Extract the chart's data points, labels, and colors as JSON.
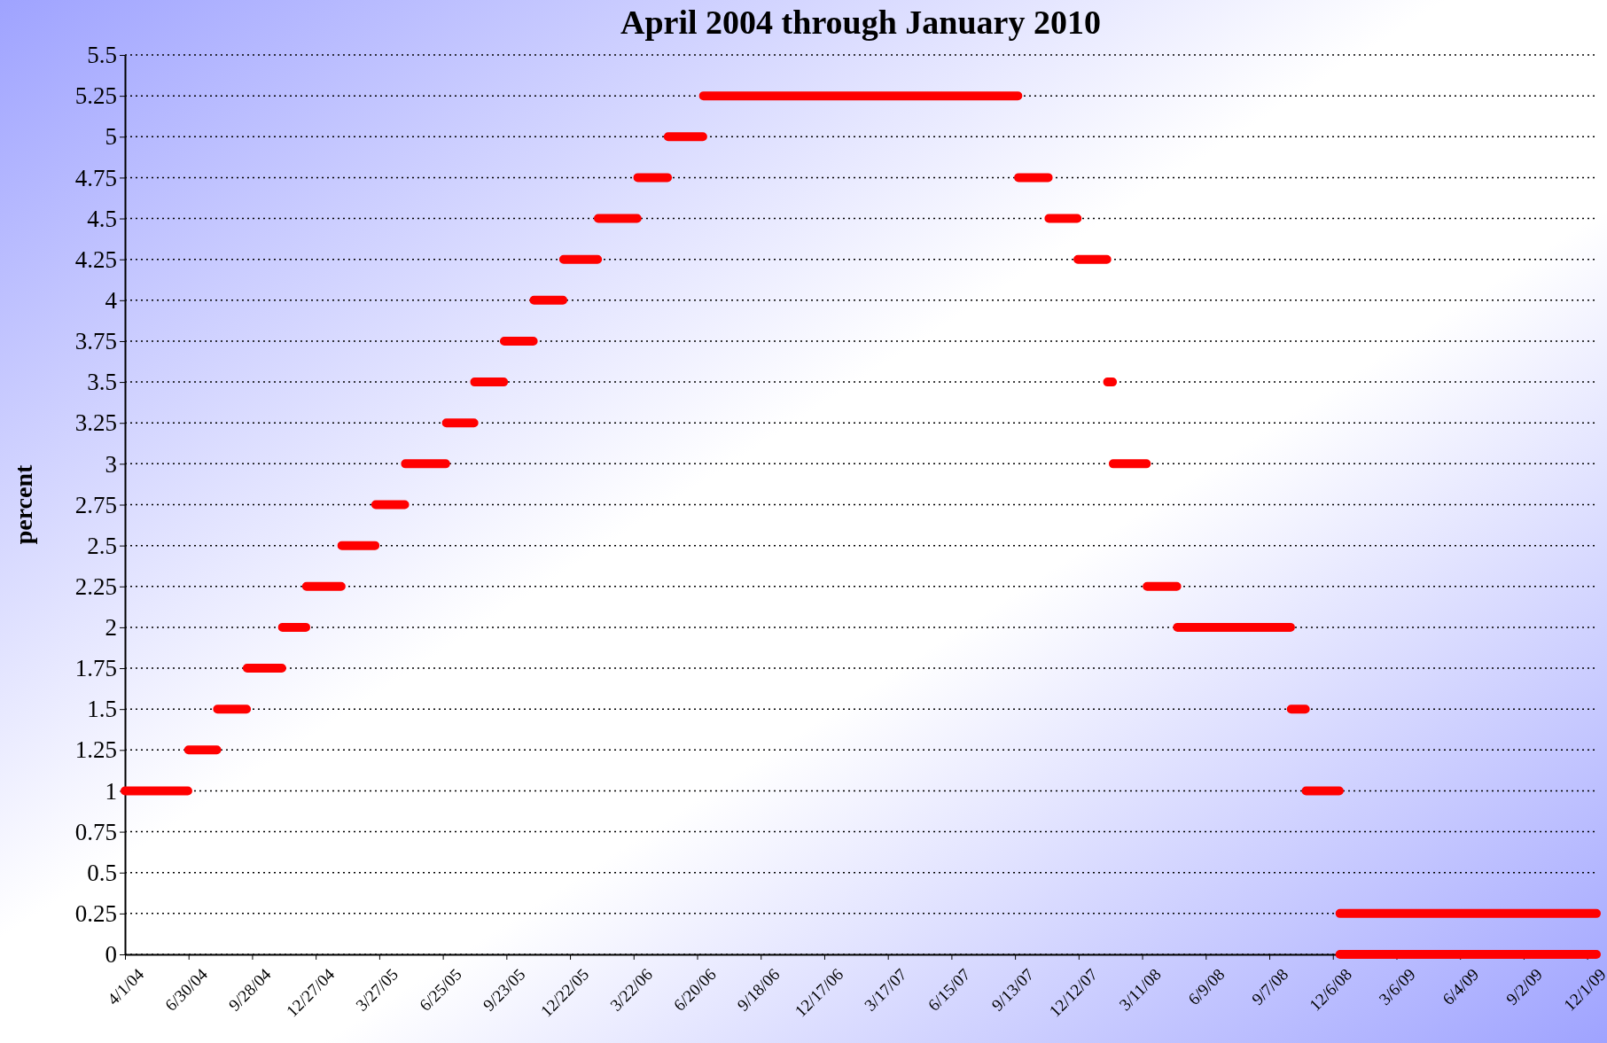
{
  "chart_data": {
    "type": "line",
    "title": "April 2004 through January 2010",
    "ylabel": "percent",
    "x": [
      "2004-04-01",
      "2004-06-29",
      null,
      "2004-06-30",
      "2004-08-09",
      null,
      "2004-08-10",
      "2004-09-20",
      null,
      "2004-09-21",
      "2004-11-09",
      null,
      "2004-11-10",
      "2004-12-13",
      null,
      "2004-12-14",
      "2005-02-01",
      null,
      "2005-02-02",
      "2005-03-21",
      null,
      "2005-03-22",
      "2005-05-02",
      null,
      "2005-05-03",
      "2005-06-29",
      null,
      "2005-06-30",
      "2005-08-08",
      null,
      "2005-08-09",
      "2005-09-19",
      null,
      "2005-09-20",
      "2005-10-31",
      null,
      "2005-11-01",
      "2005-12-12",
      null,
      "2005-12-13",
      "2006-01-30",
      null,
      "2006-01-31",
      "2006-03-27",
      null,
      "2006-03-28",
      "2006-05-09",
      null,
      "2006-05-10",
      "2006-06-28",
      null,
      "2006-06-29",
      "2007-09-17",
      null,
      "2007-09-18",
      "2007-10-30",
      null,
      "2007-10-31",
      "2007-12-10",
      null,
      "2007-12-11",
      "2008-01-21",
      null,
      "2008-01-22",
      "2008-01-29",
      null,
      "2008-01-30",
      "2008-03-17",
      null,
      "2008-03-18",
      "2008-04-29",
      null,
      "2008-04-30",
      "2008-10-07",
      null,
      "2008-10-08",
      "2008-10-28",
      null,
      "2008-10-29",
      "2008-12-15",
      null,
      "2008-12-16",
      "2009-12-14"
    ],
    "series": [
      {
        "color": "#ff0000",
        "values": [
          1,
          1,
          null,
          1.25,
          1.25,
          null,
          1.5,
          1.5,
          null,
          1.75,
          1.75,
          null,
          2,
          2,
          null,
          2.25,
          2.25,
          null,
          2.5,
          2.5,
          null,
          2.75,
          2.75,
          null,
          3,
          3,
          null,
          3.25,
          3.25,
          null,
          3.5,
          3.5,
          null,
          3.75,
          3.75,
          null,
          4,
          4,
          null,
          4.25,
          4.25,
          null,
          4.5,
          4.5,
          null,
          4.75,
          4.75,
          null,
          5,
          5,
          null,
          5.25,
          5.25,
          null,
          4.75,
          4.75,
          null,
          4.5,
          4.5,
          null,
          4.25,
          4.25,
          null,
          3.5,
          3.5,
          null,
          3,
          3,
          null,
          2.25,
          2.25,
          null,
          2,
          2,
          null,
          1.5,
          1.5,
          null,
          1,
          1,
          null,
          0.25,
          0.25
        ]
      },
      {
        "color": "#ff0000",
        "x": [
          "2008-12-16",
          "2009-12-14"
        ],
        "values": [
          0,
          0
        ]
      }
    ],
    "xlim": [
      "2004-04-01",
      "2009-12-14"
    ],
    "xticks": [
      {
        "value": "2004-04-01",
        "label": "4/1/04"
      },
      {
        "value": "2004-06-30",
        "label": "6/30/04"
      },
      {
        "value": "2004-09-28",
        "label": "9/28/04"
      },
      {
        "value": "2004-12-27",
        "label": "12/27/04"
      },
      {
        "value": "2005-03-27",
        "label": "3/27/05"
      },
      {
        "value": "2005-06-25",
        "label": "6/25/05"
      },
      {
        "value": "2005-09-23",
        "label": "9/23/05"
      },
      {
        "value": "2005-12-22",
        "label": "12/22/05"
      },
      {
        "value": "2006-03-22",
        "label": "3/22/06"
      },
      {
        "value": "2006-06-20",
        "label": "6/20/06"
      },
      {
        "value": "2006-09-18",
        "label": "9/18/06"
      },
      {
        "value": "2006-12-17",
        "label": "12/17/06"
      },
      {
        "value": "2007-03-17",
        "label": "3/17/07"
      },
      {
        "value": "2007-06-15",
        "label": "6/15/07"
      },
      {
        "value": "2007-09-13",
        "label": "9/13/07"
      },
      {
        "value": "2007-12-12",
        "label": "12/12/07"
      },
      {
        "value": "2008-03-11",
        "label": "3/11/08"
      },
      {
        "value": "2008-06-09",
        "label": "6/9/08"
      },
      {
        "value": "2008-09-07",
        "label": "9/7/08"
      },
      {
        "value": "2008-12-06",
        "label": "12/6/08"
      },
      {
        "value": "2009-03-06",
        "label": "3/6/09"
      },
      {
        "value": "2009-06-04",
        "label": "6/4/09"
      },
      {
        "value": "2009-09-02",
        "label": "9/2/09"
      },
      {
        "value": "2009-12-01",
        "label": "12/1/09"
      }
    ],
    "ylim": [
      0,
      5.5
    ],
    "yticks": [
      0,
      0.25,
      0.5,
      0.75,
      1,
      1.25,
      1.5,
      1.75,
      2,
      2.25,
      2.5,
      2.75,
      3,
      3.25,
      3.5,
      3.75,
      4,
      4.25,
      4.5,
      4.75,
      5,
      5.25,
      5.5
    ],
    "grid": "y",
    "marker": "none",
    "line_style": "solid"
  }
}
